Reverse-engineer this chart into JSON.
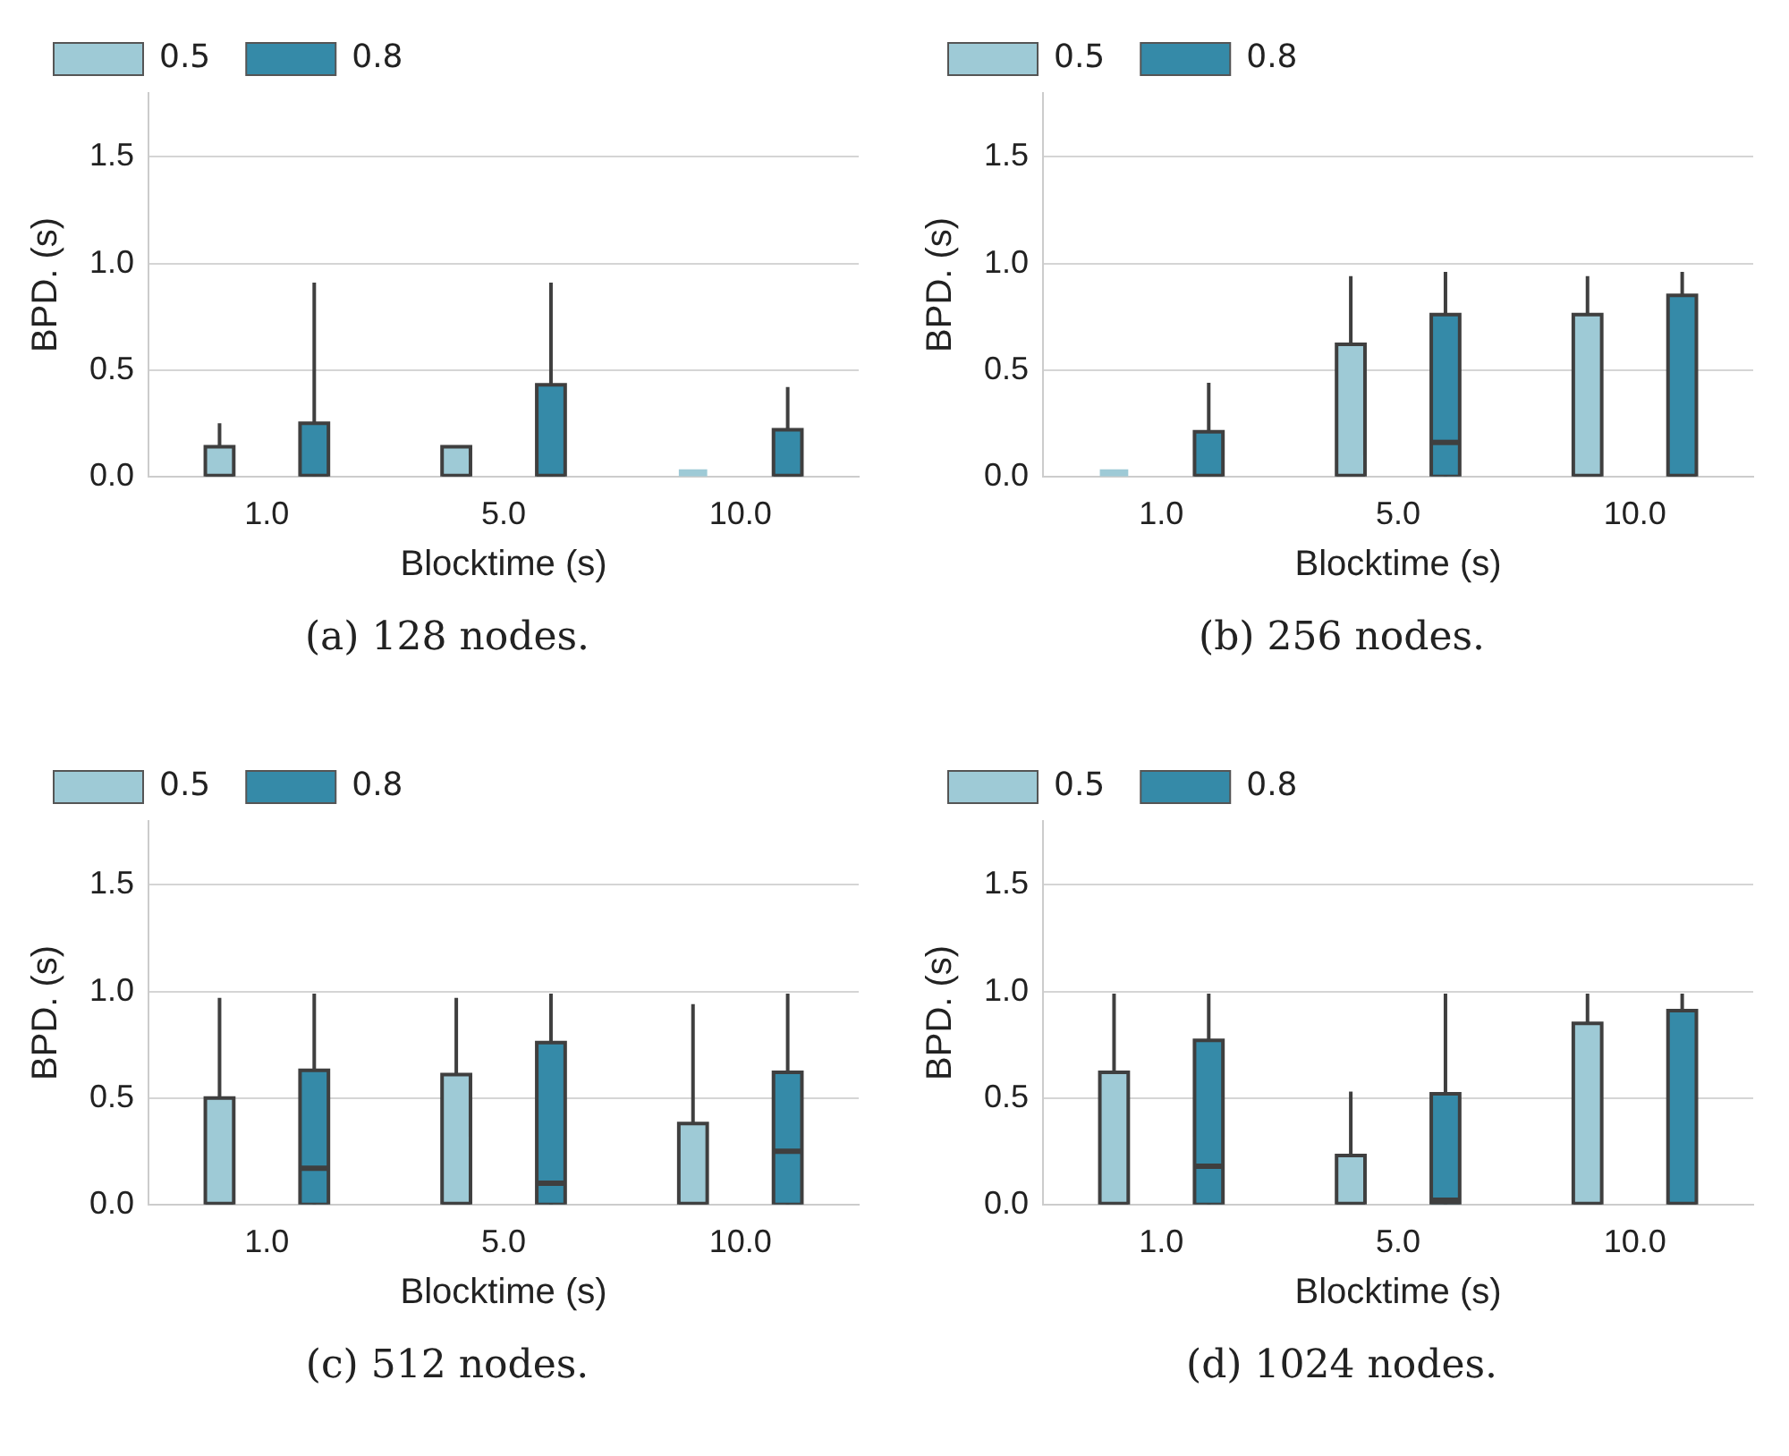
{
  "chart_data": [
    {
      "type": "box",
      "xlabel": "Blocktime (s)",
      "ylabel": "BPD. (s)",
      "categories": [
        "1.0",
        "5.0",
        "10.0"
      ],
      "ylim": [
        0,
        1.8
      ],
      "yticks": [
        {
          "value": 0,
          "label": "0.0"
        },
        {
          "value": 0.5,
          "label": "0.5"
        },
        {
          "value": 1,
          "label": "1.0"
        },
        {
          "value": 1.5,
          "label": "1.5"
        }
      ],
      "grid": "y",
      "legend": "top left",
      "annotations": [
        "(a) 128 nodes."
      ],
      "series": [
        {
          "name": "0.5",
          "color": "#9ecad6",
          "boxes": [
            {
              "low": 0,
              "q1": 0,
              "median": 0,
              "q3": 0.14,
              "high": 0.25
            },
            {
              "low": 0,
              "q1": 0,
              "median": 0,
              "q3": 0.14,
              "high": 0.14
            },
            {
              "low": 0,
              "q1": 0,
              "median": 0,
              "q3": 0,
              "high": 0
            }
          ]
        },
        {
          "name": "0.8",
          "color": "#358aa8",
          "boxes": [
            {
              "low": 0,
              "q1": 0,
              "median": 0,
              "q3": 0.25,
              "high": 0.91
            },
            {
              "low": 0,
              "q1": 0,
              "median": 0,
              "q3": 0.43,
              "high": 0.91
            },
            {
              "low": 0,
              "q1": 0,
              "median": 0,
              "q3": 0.22,
              "high": 0.42
            }
          ]
        }
      ]
    },
    {
      "type": "box",
      "xlabel": "Blocktime (s)",
      "ylabel": "BPD. (s)",
      "categories": [
        "1.0",
        "5.0",
        "10.0"
      ],
      "ylim": [
        0,
        1.8
      ],
      "yticks": [
        {
          "value": 0,
          "label": "0.0"
        },
        {
          "value": 0.5,
          "label": "0.5"
        },
        {
          "value": 1,
          "label": "1.0"
        },
        {
          "value": 1.5,
          "label": "1.5"
        }
      ],
      "grid": "y",
      "legend": "top left",
      "annotations": [
        "(b) 256 nodes."
      ],
      "series": [
        {
          "name": "0.5",
          "color": "#9ecad6",
          "boxes": [
            {
              "low": 0,
              "q1": 0,
              "median": 0,
              "q3": 0,
              "high": 0
            },
            {
              "low": 0,
              "q1": 0,
              "median": 0,
              "q3": 0.62,
              "high": 0.94
            },
            {
              "low": 0,
              "q1": 0,
              "median": 0,
              "q3": 0.76,
              "high": 0.94
            }
          ]
        },
        {
          "name": "0.8",
          "color": "#358aa8",
          "boxes": [
            {
              "low": 0,
              "q1": 0,
              "median": 0,
              "q3": 0.21,
              "high": 0.44
            },
            {
              "low": 0,
              "q1": 0,
              "median": 0.16,
              "q3": 0.76,
              "high": 0.96
            },
            {
              "low": 0,
              "q1": 0,
              "median": 0,
              "q3": 0.85,
              "high": 0.96
            }
          ]
        }
      ]
    },
    {
      "type": "box",
      "xlabel": "Blocktime (s)",
      "ylabel": "BPD. (s)",
      "categories": [
        "1.0",
        "5.0",
        "10.0"
      ],
      "ylim": [
        0,
        1.8
      ],
      "yticks": [
        {
          "value": 0,
          "label": "0.0"
        },
        {
          "value": 0.5,
          "label": "0.5"
        },
        {
          "value": 1,
          "label": "1.0"
        },
        {
          "value": 1.5,
          "label": "1.5"
        }
      ],
      "grid": "y",
      "legend": "top left",
      "annotations": [
        "(c) 512 nodes."
      ],
      "series": [
        {
          "name": "0.5",
          "color": "#9ecad6",
          "boxes": [
            {
              "low": 0,
              "q1": 0,
              "median": 0,
              "q3": 0.5,
              "high": 0.97
            },
            {
              "low": 0,
              "q1": 0,
              "median": 0,
              "q3": 0.61,
              "high": 0.97
            },
            {
              "low": 0,
              "q1": 0,
              "median": 0,
              "q3": 0.38,
              "high": 0.94
            }
          ]
        },
        {
          "name": "0.8",
          "color": "#358aa8",
          "boxes": [
            {
              "low": 0,
              "q1": 0,
              "median": 0.17,
              "q3": 0.63,
              "high": 0.99
            },
            {
              "low": 0,
              "q1": 0,
              "median": 0.1,
              "q3": 0.76,
              "high": 0.99
            },
            {
              "low": 0,
              "q1": 0,
              "median": 0.25,
              "q3": 0.62,
              "high": 0.99
            }
          ]
        }
      ]
    },
    {
      "type": "box",
      "xlabel": "Blocktime (s)",
      "ylabel": "BPD. (s)",
      "categories": [
        "1.0",
        "5.0",
        "10.0"
      ],
      "ylim": [
        0,
        1.8
      ],
      "yticks": [
        {
          "value": 0,
          "label": "0.0"
        },
        {
          "value": 0.5,
          "label": "0.5"
        },
        {
          "value": 1,
          "label": "1.0"
        },
        {
          "value": 1.5,
          "label": "1.5"
        }
      ],
      "grid": "y",
      "legend": "top left",
      "annotations": [
        "(d) 1024 nodes."
      ],
      "series": [
        {
          "name": "0.5",
          "color": "#9ecad6",
          "boxes": [
            {
              "low": 0,
              "q1": 0,
              "median": 0,
              "q3": 0.62,
              "high": 0.99
            },
            {
              "low": 0,
              "q1": 0,
              "median": 0,
              "q3": 0.23,
              "high": 0.53
            },
            {
              "low": 0,
              "q1": 0,
              "median": 0,
              "q3": 0.85,
              "high": 0.99
            }
          ]
        },
        {
          "name": "0.8",
          "color": "#358aa8",
          "boxes": [
            {
              "low": 0,
              "q1": 0,
              "median": 0.18,
              "q3": 0.77,
              "high": 0.99
            },
            {
              "low": 0,
              "q1": 0,
              "median": 0.02,
              "q3": 0.52,
              "high": 0.99
            },
            {
              "low": 0,
              "q1": 0,
              "median": 0,
              "q3": 0.91,
              "high": 0.99
            }
          ]
        }
      ]
    }
  ]
}
